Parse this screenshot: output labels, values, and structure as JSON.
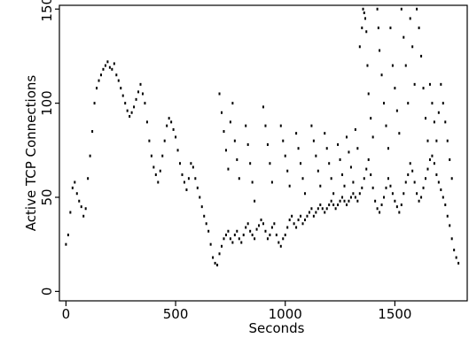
{
  "chart_data": {
    "type": "scatter",
    "title": "",
    "xlabel": "Seconds",
    "ylabel": "Active TCP Connections",
    "xlim": [
      -30,
      1830
    ],
    "ylim": [
      -5,
      152
    ],
    "x_ticks": [
      0,
      500,
      1000,
      1500
    ],
    "x_tick_labels": [
      "0",
      "500",
      "1000",
      "1500"
    ],
    "y_ticks": [
      0,
      50,
      100,
      150
    ],
    "y_tick_labels": [
      "0",
      "50",
      "100",
      "150"
    ],
    "grid": false,
    "legend": "none",
    "point_color": "#000000",
    "series": [
      {
        "points": [
          [
            0,
            25
          ],
          [
            10,
            30
          ],
          [
            20,
            42
          ],
          [
            30,
            55
          ],
          [
            40,
            58
          ],
          [
            50,
            52
          ],
          [
            60,
            48
          ],
          [
            70,
            45
          ],
          [
            80,
            40
          ],
          [
            90,
            44
          ],
          [
            100,
            60
          ],
          [
            110,
            72
          ],
          [
            120,
            85
          ],
          [
            130,
            100
          ],
          [
            140,
            108
          ],
          [
            150,
            112
          ],
          [
            160,
            115
          ],
          [
            170,
            118
          ],
          [
            180,
            120
          ],
          [
            190,
            122
          ],
          [
            200,
            119
          ],
          [
            210,
            118
          ],
          [
            220,
            121
          ],
          [
            230,
            115
          ],
          [
            240,
            112
          ],
          [
            250,
            108
          ],
          [
            260,
            104
          ],
          [
            270,
            100
          ],
          [
            280,
            96
          ],
          [
            290,
            93
          ],
          [
            300,
            95
          ],
          [
            310,
            98
          ],
          [
            320,
            102
          ],
          [
            330,
            106
          ],
          [
            340,
            110
          ],
          [
            350,
            105
          ],
          [
            360,
            100
          ],
          [
            370,
            90
          ],
          [
            380,
            80
          ],
          [
            390,
            72
          ],
          [
            400,
            66
          ],
          [
            410,
            62
          ],
          [
            420,
            58
          ],
          [
            430,
            64
          ],
          [
            440,
            72
          ],
          [
            450,
            80
          ],
          [
            460,
            88
          ],
          [
            470,
            92
          ],
          [
            480,
            90
          ],
          [
            490,
            86
          ],
          [
            500,
            82
          ],
          [
            510,
            75
          ],
          [
            520,
            68
          ],
          [
            530,
            62
          ],
          [
            540,
            58
          ],
          [
            550,
            54
          ],
          [
            560,
            60
          ],
          [
            570,
            68
          ],
          [
            580,
            66
          ],
          [
            590,
            60
          ],
          [
            600,
            55
          ],
          [
            610,
            50
          ],
          [
            620,
            45
          ],
          [
            630,
            40
          ],
          [
            640,
            36
          ],
          [
            650,
            32
          ],
          [
            660,
            25
          ],
          [
            670,
            18
          ],
          [
            680,
            15
          ],
          [
            690,
            14
          ],
          [
            700,
            20
          ],
          [
            710,
            24
          ],
          [
            720,
            28
          ],
          [
            730,
            30
          ],
          [
            740,
            32
          ],
          [
            750,
            28
          ],
          [
            760,
            26
          ],
          [
            770,
            30
          ],
          [
            780,
            32
          ],
          [
            790,
            28
          ],
          [
            800,
            26
          ],
          [
            810,
            30
          ],
          [
            820,
            34
          ],
          [
            830,
            36
          ],
          [
            840,
            32
          ],
          [
            850,
            30
          ],
          [
            860,
            28
          ],
          [
            870,
            33
          ],
          [
            880,
            35
          ],
          [
            890,
            38
          ],
          [
            900,
            36
          ],
          [
            910,
            32
          ],
          [
            920,
            28
          ],
          [
            930,
            30
          ],
          [
            940,
            34
          ],
          [
            950,
            36
          ],
          [
            960,
            30
          ],
          [
            970,
            26
          ],
          [
            980,
            24
          ],
          [
            990,
            28
          ],
          [
            1000,
            30
          ],
          [
            1010,
            34
          ],
          [
            1020,
            38
          ],
          [
            1030,
            40
          ],
          [
            1040,
            36
          ],
          [
            1050,
            34
          ],
          [
            1060,
            38
          ],
          [
            1070,
            40
          ],
          [
            1080,
            36
          ],
          [
            1090,
            38
          ],
          [
            1100,
            40
          ],
          [
            1110,
            42
          ],
          [
            1120,
            44
          ],
          [
            1130,
            40
          ],
          [
            1140,
            42
          ],
          [
            1150,
            44
          ],
          [
            1160,
            46
          ],
          [
            1170,
            44
          ],
          [
            1180,
            42
          ],
          [
            1190,
            44
          ],
          [
            1200,
            46
          ],
          [
            1210,
            48
          ],
          [
            1220,
            46
          ],
          [
            1230,
            44
          ],
          [
            1240,
            46
          ],
          [
            1250,
            48
          ],
          [
            1260,
            50
          ],
          [
            1270,
            48
          ],
          [
            1280,
            46
          ],
          [
            1290,
            48
          ],
          [
            1300,
            50
          ],
          [
            1310,
            52
          ],
          [
            1320,
            50
          ],
          [
            1330,
            48
          ],
          [
            1340,
            52
          ],
          [
            1350,
            55
          ],
          [
            1360,
            60
          ],
          [
            1370,
            65
          ],
          [
            1380,
            70
          ],
          [
            1390,
            62
          ],
          [
            1400,
            55
          ],
          [
            1410,
            48
          ],
          [
            1420,
            44
          ],
          [
            1430,
            42
          ],
          [
            1440,
            46
          ],
          [
            1450,
            50
          ],
          [
            1460,
            55
          ],
          [
            1470,
            60
          ],
          [
            1480,
            56
          ],
          [
            1490,
            52
          ],
          [
            1500,
            48
          ],
          [
            1510,
            45
          ],
          [
            1520,
            42
          ],
          [
            1530,
            46
          ],
          [
            1540,
            52
          ],
          [
            1550,
            58
          ],
          [
            1560,
            62
          ],
          [
            1570,
            68
          ],
          [
            1580,
            64
          ],
          [
            1590,
            58
          ],
          [
            1600,
            52
          ],
          [
            1610,
            48
          ],
          [
            1620,
            50
          ],
          [
            1630,
            55
          ],
          [
            1640,
            60
          ],
          [
            1650,
            65
          ],
          [
            1660,
            70
          ],
          [
            1670,
            72
          ],
          [
            1680,
            68
          ],
          [
            1690,
            62
          ],
          [
            1700,
            58
          ],
          [
            1710,
            54
          ],
          [
            1720,
            50
          ],
          [
            1730,
            46
          ],
          [
            1740,
            40
          ],
          [
            1750,
            35
          ],
          [
            1760,
            28
          ],
          [
            1770,
            22
          ],
          [
            1780,
            18
          ],
          [
            1790,
            15
          ],
          [
            700,
            105
          ],
          [
            710,
            95
          ],
          [
            720,
            85
          ],
          [
            730,
            75
          ],
          [
            740,
            65
          ],
          [
            750,
            90
          ],
          [
            760,
            100
          ],
          [
            770,
            80
          ],
          [
            780,
            70
          ],
          [
            790,
            60
          ],
          [
            820,
            88
          ],
          [
            830,
            78
          ],
          [
            840,
            68
          ],
          [
            850,
            58
          ],
          [
            860,
            48
          ],
          [
            900,
            98
          ],
          [
            910,
            88
          ],
          [
            920,
            78
          ],
          [
            930,
            68
          ],
          [
            940,
            58
          ],
          [
            980,
            88
          ],
          [
            990,
            80
          ],
          [
            1000,
            72
          ],
          [
            1010,
            64
          ],
          [
            1020,
            56
          ],
          [
            1050,
            84
          ],
          [
            1060,
            76
          ],
          [
            1070,
            68
          ],
          [
            1080,
            60
          ],
          [
            1090,
            52
          ],
          [
            1120,
            88
          ],
          [
            1130,
            80
          ],
          [
            1140,
            72
          ],
          [
            1150,
            64
          ],
          [
            1160,
            56
          ],
          [
            1180,
            84
          ],
          [
            1190,
            76
          ],
          [
            1200,
            68
          ],
          [
            1210,
            60
          ],
          [
            1220,
            52
          ],
          [
            1240,
            78
          ],
          [
            1250,
            70
          ],
          [
            1260,
            62
          ],
          [
            1270,
            56
          ],
          [
            1280,
            82
          ],
          [
            1290,
            74
          ],
          [
            1300,
            66
          ],
          [
            1310,
            58
          ],
          [
            1320,
            86
          ],
          [
            1330,
            76
          ],
          [
            1340,
            130
          ],
          [
            1350,
            140
          ],
          [
            1355,
            150
          ],
          [
            1360,
            148
          ],
          [
            1365,
            145
          ],
          [
            1370,
            138
          ],
          [
            1375,
            120
          ],
          [
            1380,
            105
          ],
          [
            1390,
            92
          ],
          [
            1400,
            82
          ],
          [
            1420,
            150
          ],
          [
            1425,
            140
          ],
          [
            1430,
            128
          ],
          [
            1440,
            115
          ],
          [
            1450,
            100
          ],
          [
            1460,
            88
          ],
          [
            1470,
            76
          ],
          [
            1480,
            140
          ],
          [
            1490,
            120
          ],
          [
            1500,
            108
          ],
          [
            1510,
            96
          ],
          [
            1520,
            84
          ],
          [
            1530,
            150
          ],
          [
            1540,
            135
          ],
          [
            1550,
            120
          ],
          [
            1560,
            100
          ],
          [
            1570,
            145
          ],
          [
            1580,
            130
          ],
          [
            1590,
            110
          ],
          [
            1600,
            150
          ],
          [
            1610,
            140
          ],
          [
            1620,
            125
          ],
          [
            1630,
            108
          ],
          [
            1640,
            92
          ],
          [
            1650,
            80
          ],
          [
            1660,
            110
          ],
          [
            1670,
            100
          ],
          [
            1680,
            90
          ],
          [
            1690,
            80
          ],
          [
            1700,
            95
          ],
          [
            1710,
            110
          ],
          [
            1720,
            100
          ],
          [
            1730,
            90
          ],
          [
            1740,
            80
          ],
          [
            1750,
            70
          ],
          [
            1760,
            60
          ]
        ]
      }
    ]
  }
}
